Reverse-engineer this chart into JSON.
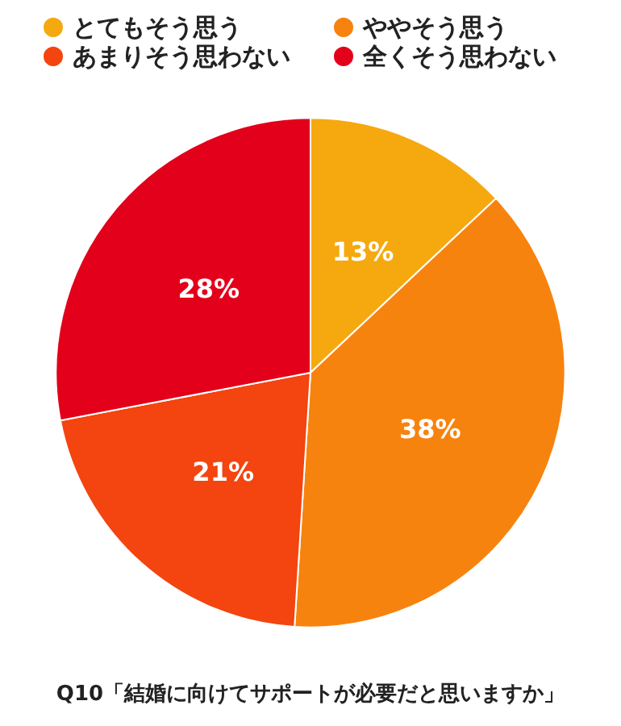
{
  "chart_data": {
    "type": "pie",
    "title": "Q10「結婚に向けてサポートが必要だと思いますか」",
    "categories": [
      "とてもそう思う",
      "ややそう思う",
      "あまりそう思わない",
      "全くそう思わない"
    ],
    "values": [
      13,
      38,
      21,
      28
    ],
    "colors": [
      "#f5a90f",
      "#f7830f",
      "#f4440f",
      "#e3001a"
    ],
    "value_labels": [
      "13%",
      "38%",
      "21%",
      "28%"
    ],
    "legend": "top"
  }
}
